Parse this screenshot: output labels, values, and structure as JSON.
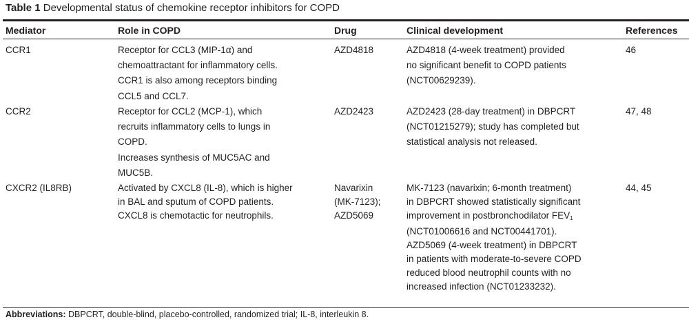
{
  "title": {
    "label": "Table 1",
    "text": "Developmental status of chemokine receptor inhibitors for COPD"
  },
  "headers": [
    "Mediator",
    "Role in COPD",
    "Drug",
    "Clinical development",
    "References"
  ],
  "rows": [
    {
      "cells": [
        [
          "CCR1"
        ],
        [
          "Receptor for CCL3 (MIP-1α) and",
          "chemoattractant for inflammatory cells.",
          "CCR1 is also among receptors binding",
          "CCL5 and CCL7."
        ],
        [
          "AZD4818"
        ],
        [
          "AZD4818 (4-week treatment) provided",
          "no significant benefit to COPD patients",
          "(NCT00629239)."
        ],
        [
          "46"
        ]
      ]
    },
    {
      "cells": [
        [
          "CCR2"
        ],
        [
          "Receptor for CCL2 (MCP-1), which",
          "recruits inflammatory cells to lungs in",
          "COPD.",
          "Increases synthesis of MUC5AC and",
          "MUC5B."
        ],
        [
          "AZD2423"
        ],
        [
          "AZD2423 (28-day treatment) in DBPCRT",
          "(NCT01215279); study has completed but",
          "statistical analysis not released."
        ],
        [
          "47, 48"
        ]
      ]
    },
    {
      "cells": [
        [
          "CXCR2 (IL8RB)"
        ],
        [
          "Activated by CXCL8 (IL-8), which is higher",
          "in BAL and sputum of COPD patients.",
          "CXCL8 is chemotactic for neutrophils."
        ],
        [
          "Navarixin",
          "(MK-7123);",
          "AZD5069"
        ],
        [
          "MK-7123 (navarixin; 6-month treatment)",
          "in DBPCRT showed statistically significant",
          "improvement in postbronchodilator FEV",
          "(NCT01006616 and NCT00441701).",
          "AZD5069 (4-week treatment) in DBPCRT",
          "in patients with moderate-to-severe COPD",
          "reduced blood neutrophil counts with no",
          "increased infection (NCT01233232)."
        ],
        [
          "44, 45"
        ]
      ]
    }
  ],
  "fev_subscript": "1",
  "footnote": {
    "label": "Abbreviations:",
    "text": " DBPCRT, double-blind, placebo-controlled, randomized trial; IL-8, interleukin 8."
  }
}
